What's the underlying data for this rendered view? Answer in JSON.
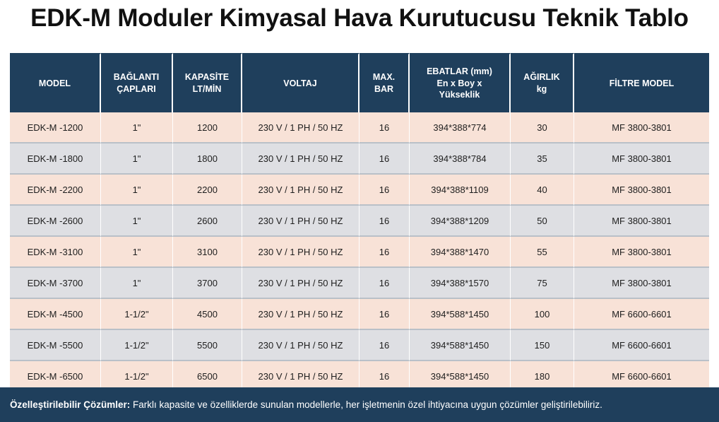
{
  "title": "EDK-M Moduler Kimyasal Hava Kurutucusu Teknik Tablo",
  "table": {
    "headers": [
      [
        "MODEL"
      ],
      [
        "BAĞLANTI",
        "ÇAPLARI"
      ],
      [
        "KAPASİTE",
        "LT/MİN"
      ],
      [
        "VOLTAJ"
      ],
      [
        "MAX.",
        "BAR"
      ],
      [
        "EBATLAR (mm)",
        "En x Boy x",
        "Yükseklik"
      ],
      [
        "AĞIRLIK",
        "kg"
      ],
      [
        "FİLTRE MODEL"
      ]
    ],
    "rows": [
      [
        "EDK-M -1200",
        "1\"",
        "1200",
        "230 V / 1 PH / 50 HZ",
        "16",
        "394*388*774",
        "30",
        "MF 3800-3801"
      ],
      [
        "EDK-M -1800",
        "1\"",
        "1800",
        "230 V / 1 PH / 50 HZ",
        "16",
        "394*388*784",
        "35",
        "MF 3800-3801"
      ],
      [
        "EDK-M -2200",
        "1\"",
        "2200",
        "230 V / 1 PH / 50 HZ",
        "16",
        "394*388*1109",
        "40",
        "MF 3800-3801"
      ],
      [
        "EDK-M -2600",
        "1\"",
        "2600",
        "230 V / 1 PH / 50 HZ",
        "16",
        "394*388*1209",
        "50",
        "MF 3800-3801"
      ],
      [
        "EDK-M -3100",
        "1\"",
        "3100",
        "230 V / 1 PH / 50 HZ",
        "16",
        "394*388*1470",
        "55",
        "MF 3800-3801"
      ],
      [
        "EDK-M -3700",
        "1\"",
        "3700",
        "230 V / 1 PH / 50 HZ",
        "16",
        "394*388*1570",
        "75",
        "MF 3800-3801"
      ],
      [
        "EDK-M -4500",
        "1-1/2\"",
        "4500",
        "230 V / 1 PH / 50 HZ",
        "16",
        "394*588*1450",
        "100",
        "MF 6600-6601"
      ],
      [
        "EDK-M -5500",
        "1-1/2\"",
        "5500",
        "230 V / 1 PH / 50 HZ",
        "16",
        "394*588*1450",
        "150",
        "MF 6600-6601"
      ],
      [
        "EDK-M -6500",
        "1-1/2\"",
        "6500",
        "230 V / 1 PH / 50 HZ",
        "16",
        "394*588*1450",
        "180",
        "MF 6600-6601"
      ]
    ]
  },
  "footer": {
    "label": "Özelleştirilebilir Çözümler:",
    "text": " Farklı kapasite ve özelliklerde sunulan modellerle, her işletmenin özel ihtiyacına uygun çözümler geliştirilebiliriz."
  },
  "colors": {
    "header_bg": "#1f3f5c",
    "row_odd_bg": "#f8e2d7",
    "row_even_bg": "#dedfe3"
  }
}
